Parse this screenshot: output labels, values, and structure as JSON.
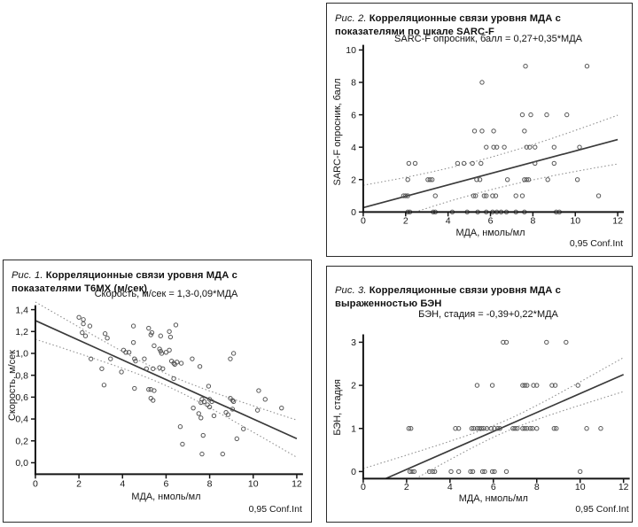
{
  "colors": {
    "axis": "#141414",
    "marker": "#555555",
    "regression": "#3a3a3a",
    "ci_band": "#8f8f8f",
    "panel_border": "#2b2b2b",
    "background": "#ffffff"
  },
  "chart_data": [
    {
      "id": "fig1",
      "type": "scatter",
      "caption_label": "Рис. 1.",
      "caption_text": "Корреляционные связи уровня МДА с показателями Т6МХ (м/сек)",
      "subtitle": "Скорость, м/сек = 1,3-0,09*МДА",
      "xlabel": "МДА, нмоль/мл",
      "ylabel": "Скорость, м/сек",
      "annotation": "0,95 Conf.Int",
      "xlim": [
        0,
        12
      ],
      "ylim": [
        0,
        1.4
      ],
      "xticks": [
        0,
        2,
        4,
        6,
        8,
        10,
        12
      ],
      "yticks": [
        0,
        0.2,
        0.4,
        0.6,
        0.8,
        1.0,
        1.2,
        1.4
      ],
      "ytick_labels": [
        "0,0",
        "0,2",
        "0,4",
        "0,6",
        "0,8",
        "1,0",
        "1,2",
        "1,4"
      ],
      "regression": {
        "intercept": 1.3,
        "slope": -0.09
      },
      "confidence": {
        "level": "0,95",
        "center_x": 6.0,
        "min_halfwidth": 0.055,
        "spread": 2.05
      },
      "points": [
        [
          2.0,
          1.33
        ],
        [
          2.2,
          1.31
        ],
        [
          2.2,
          1.27
        ],
        [
          2.5,
          1.25
        ],
        [
          2.15,
          1.19
        ],
        [
          2.3,
          1.16
        ],
        [
          2.55,
          0.95
        ],
        [
          3.2,
          1.18
        ],
        [
          3.3,
          1.14
        ],
        [
          3.05,
          0.86
        ],
        [
          3.15,
          0.71
        ],
        [
          3.45,
          0.95
        ],
        [
          3.95,
          0.83
        ],
        [
          4.05,
          1.03
        ],
        [
          4.15,
          1.01
        ],
        [
          4.3,
          1.01
        ],
        [
          4.5,
          1.25
        ],
        [
          4.5,
          1.1
        ],
        [
          4.55,
          0.95
        ],
        [
          4.6,
          0.93
        ],
        [
          4.55,
          0.68
        ],
        [
          5.0,
          0.95
        ],
        [
          5.1,
          0.86
        ],
        [
          5.2,
          1.23
        ],
        [
          5.3,
          1.17
        ],
        [
          5.35,
          1.19
        ],
        [
          5.45,
          1.07
        ],
        [
          5.7,
          1.04
        ],
        [
          5.75,
          1.02
        ],
        [
          5.8,
          1.0
        ],
        [
          5.75,
          1.16
        ],
        [
          5.4,
          0.86
        ],
        [
          5.7,
          0.87
        ],
        [
          5.85,
          0.86
        ],
        [
          5.3,
          0.67
        ],
        [
          5.2,
          0.67
        ],
        [
          5.45,
          0.66
        ],
        [
          5.3,
          0.59
        ],
        [
          5.4,
          0.57
        ],
        [
          6.15,
          1.2
        ],
        [
          6.2,
          1.15
        ],
        [
          6.45,
          1.26
        ],
        [
          6.0,
          1.01
        ],
        [
          6.15,
          1.03
        ],
        [
          6.25,
          0.93
        ],
        [
          6.35,
          0.91
        ],
        [
          6.4,
          0.9
        ],
        [
          6.5,
          0.92
        ],
        [
          6.7,
          0.91
        ],
        [
          6.35,
          0.77
        ],
        [
          6.65,
          0.33
        ],
        [
          6.75,
          0.17
        ],
        [
          7.2,
          0.95
        ],
        [
          7.55,
          0.88
        ],
        [
          7.25,
          0.5
        ],
        [
          7.5,
          0.45
        ],
        [
          7.6,
          0.55
        ],
        [
          7.65,
          0.58
        ],
        [
          7.75,
          0.56
        ],
        [
          7.6,
          0.41
        ],
        [
          7.7,
          0.25
        ],
        [
          7.65,
          0.08
        ],
        [
          7.95,
          0.7
        ],
        [
          8.0,
          0.58
        ],
        [
          8.1,
          0.56
        ],
        [
          7.9,
          0.53
        ],
        [
          8.0,
          0.51
        ],
        [
          8.2,
          0.43
        ],
        [
          8.6,
          0.08
        ],
        [
          8.75,
          0.46
        ],
        [
          8.85,
          0.44
        ],
        [
          8.95,
          0.95
        ],
        [
          9.1,
          1.0
        ],
        [
          8.95,
          0.59
        ],
        [
          9.05,
          0.57
        ],
        [
          9.1,
          0.56
        ],
        [
          9.05,
          0.49
        ],
        [
          9.25,
          0.22
        ],
        [
          9.55,
          0.31
        ],
        [
          10.25,
          0.66
        ],
        [
          10.2,
          0.48
        ],
        [
          10.55,
          0.58
        ],
        [
          11.3,
          0.5
        ]
      ]
    },
    {
      "id": "fig2",
      "type": "scatter",
      "caption_label": "Рис. 2.",
      "caption_text": "Корреляционные связи уровня МДА с показателями по шкале SARC-F",
      "subtitle": "SARC-F опросник, балл = 0,27+0,35*МДА",
      "xlabel": "МДА, нмоль/мл",
      "ylabel": "SARC-F опросник, балл",
      "annotation": "0,95 Conf.Int",
      "xlim": [
        0,
        12
      ],
      "ylim": [
        0,
        10
      ],
      "xticks": [
        0,
        2,
        4,
        6,
        8,
        10,
        12
      ],
      "yticks": [
        0,
        2,
        4,
        6,
        8,
        10
      ],
      "ytick_labels": [
        "0",
        "2",
        "4",
        "6",
        "8",
        "10"
      ],
      "regression": {
        "intercept": 0.27,
        "slope": 0.35
      },
      "confidence": {
        "level": "0,95",
        "center_x": 5.5,
        "min_halfwidth": 1.0,
        "spread": 5.78
      },
      "points": [
        [
          2.1,
          0
        ],
        [
          2.2,
          0
        ],
        [
          3.3,
          0
        ],
        [
          3.4,
          0
        ],
        [
          4.2,
          0
        ],
        [
          4.9,
          0
        ],
        [
          5.4,
          0
        ],
        [
          5.8,
          0
        ],
        [
          6.1,
          0
        ],
        [
          6.3,
          0
        ],
        [
          6.5,
          0
        ],
        [
          6.75,
          0
        ],
        [
          7.2,
          0
        ],
        [
          7.6,
          0
        ],
        [
          9.1,
          0
        ],
        [
          9.25,
          0
        ],
        [
          1.9,
          1
        ],
        [
          2.0,
          1
        ],
        [
          2.1,
          1
        ],
        [
          3.4,
          1
        ],
        [
          5.2,
          1
        ],
        [
          5.3,
          1
        ],
        [
          5.7,
          1
        ],
        [
          5.8,
          1
        ],
        [
          6.1,
          1
        ],
        [
          6.25,
          1
        ],
        [
          7.2,
          1
        ],
        [
          7.5,
          1
        ],
        [
          11.1,
          1
        ],
        [
          2.1,
          2
        ],
        [
          3.05,
          2
        ],
        [
          3.15,
          2
        ],
        [
          3.25,
          2
        ],
        [
          5.35,
          2
        ],
        [
          5.5,
          2
        ],
        [
          6.8,
          2
        ],
        [
          7.6,
          2
        ],
        [
          7.7,
          2
        ],
        [
          7.8,
          2
        ],
        [
          8.7,
          2
        ],
        [
          10.1,
          2
        ],
        [
          2.15,
          3
        ],
        [
          2.45,
          3
        ],
        [
          4.45,
          3
        ],
        [
          4.75,
          3
        ],
        [
          5.15,
          3
        ],
        [
          5.55,
          3
        ],
        [
          8.1,
          3
        ],
        [
          9.0,
          3
        ],
        [
          5.8,
          4
        ],
        [
          6.15,
          4
        ],
        [
          6.3,
          4
        ],
        [
          6.65,
          4
        ],
        [
          7.7,
          4
        ],
        [
          7.85,
          4
        ],
        [
          8.1,
          4
        ],
        [
          9.0,
          4
        ],
        [
          10.2,
          4
        ],
        [
          5.25,
          5
        ],
        [
          5.6,
          5
        ],
        [
          6.15,
          5
        ],
        [
          7.6,
          5
        ],
        [
          7.5,
          6
        ],
        [
          7.9,
          6
        ],
        [
          8.65,
          6
        ],
        [
          9.6,
          6
        ],
        [
          5.6,
          8
        ],
        [
          7.65,
          9
        ],
        [
          10.55,
          9
        ]
      ]
    },
    {
      "id": "fig3",
      "type": "scatter",
      "caption_label": "Рис. 3.",
      "caption_text": "Корреляционные связи уровня МДА с выраженностью БЭН",
      "subtitle": "БЭН, стадия = -0,39+0,22*МДА",
      "xlabel": "МДА, нмоль/мл",
      "ylabel": "БЭН, стадия",
      "annotation": "0,95 Conf.Int",
      "xlim": [
        0,
        12
      ],
      "ylim": [
        0,
        3
      ],
      "xticks": [
        0,
        2,
        4,
        6,
        8,
        10,
        12
      ],
      "yticks": [
        0,
        1,
        2,
        3
      ],
      "ytick_labels": [
        "0",
        "1",
        "2",
        "3"
      ],
      "regression": {
        "intercept": -0.39,
        "slope": 0.22
      },
      "confidence": {
        "level": "0,95",
        "center_x": 6.5,
        "min_halfwidth": 0.13,
        "spread": 1.92
      },
      "points": [
        [
          2.15,
          0
        ],
        [
          2.25,
          0
        ],
        [
          2.35,
          0
        ],
        [
          3.05,
          0
        ],
        [
          3.2,
          0
        ],
        [
          3.3,
          0
        ],
        [
          4.05,
          0
        ],
        [
          4.4,
          0
        ],
        [
          4.95,
          0
        ],
        [
          5.05,
          0
        ],
        [
          5.5,
          0
        ],
        [
          5.6,
          0
        ],
        [
          5.95,
          0
        ],
        [
          6.05,
          0
        ],
        [
          6.6,
          0
        ],
        [
          10.0,
          0
        ],
        [
          2.1,
          1
        ],
        [
          2.2,
          1
        ],
        [
          4.25,
          1
        ],
        [
          4.4,
          1
        ],
        [
          5.0,
          1
        ],
        [
          5.1,
          1
        ],
        [
          5.25,
          1
        ],
        [
          5.35,
          1
        ],
        [
          5.45,
          1
        ],
        [
          5.55,
          1
        ],
        [
          5.7,
          1
        ],
        [
          5.9,
          1
        ],
        [
          6.05,
          1
        ],
        [
          6.2,
          1
        ],
        [
          6.3,
          1
        ],
        [
          6.9,
          1
        ],
        [
          7.0,
          1
        ],
        [
          7.1,
          1
        ],
        [
          7.35,
          1
        ],
        [
          7.45,
          1
        ],
        [
          7.55,
          1
        ],
        [
          7.7,
          1
        ],
        [
          7.8,
          1
        ],
        [
          8.0,
          1
        ],
        [
          8.8,
          1
        ],
        [
          8.9,
          1
        ],
        [
          10.3,
          1
        ],
        [
          10.95,
          1
        ],
        [
          5.25,
          2
        ],
        [
          5.95,
          2
        ],
        [
          7.35,
          2
        ],
        [
          7.45,
          2
        ],
        [
          7.55,
          2
        ],
        [
          7.85,
          2
        ],
        [
          8.0,
          2
        ],
        [
          8.7,
          2
        ],
        [
          8.85,
          2
        ],
        [
          9.9,
          2
        ],
        [
          6.45,
          3
        ],
        [
          6.6,
          3
        ],
        [
          8.45,
          3
        ],
        [
          9.35,
          3
        ]
      ]
    }
  ]
}
